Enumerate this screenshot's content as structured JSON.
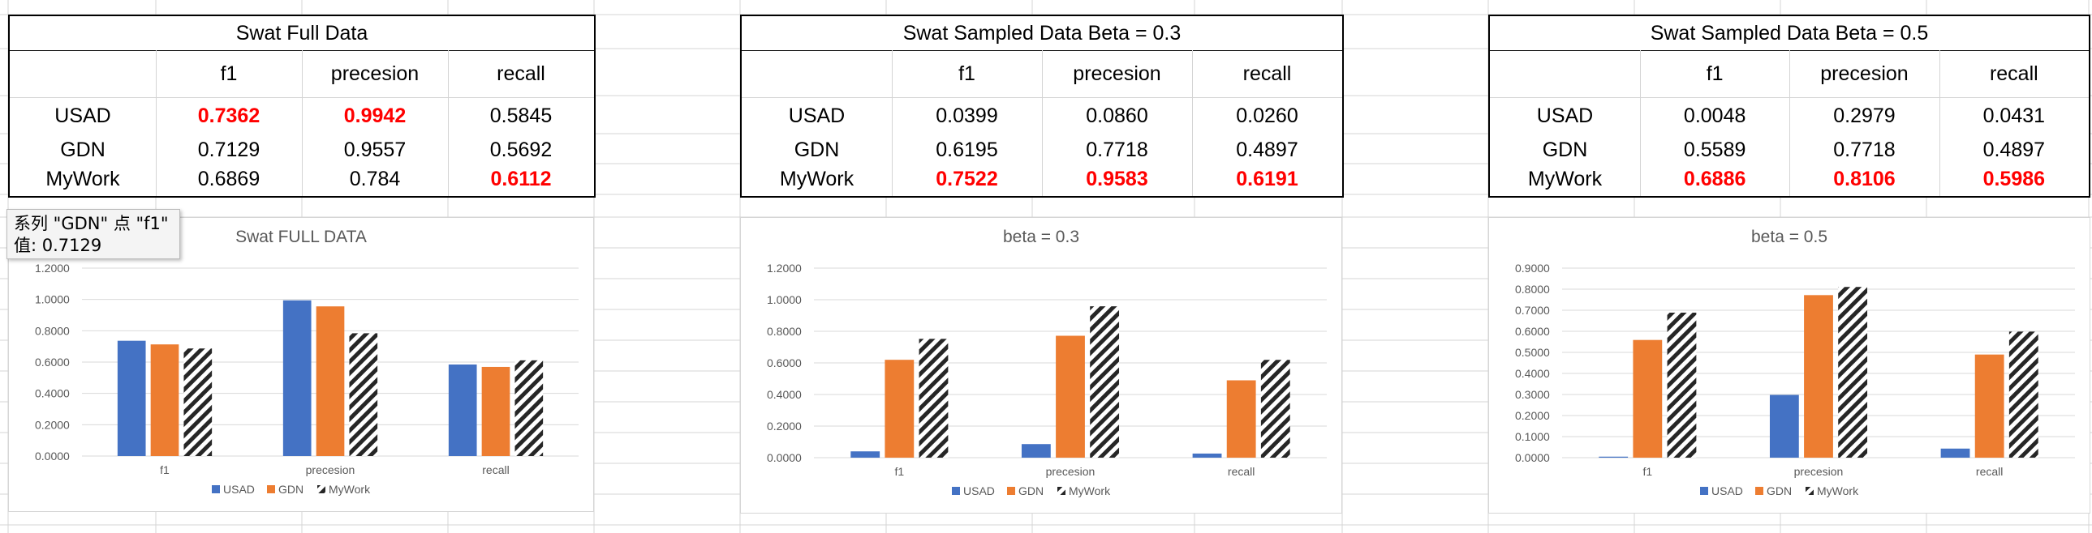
{
  "tables": [
    {
      "title": "Swat Full Data",
      "columns": [
        "f1",
        "precesion",
        "recall"
      ],
      "rows": [
        {
          "name": "USAD",
          "values": [
            "0.7362",
            "0.9942",
            "0.5845"
          ],
          "red": [
            true,
            true,
            false
          ]
        },
        {
          "name": "GDN",
          "values": [
            "0.7129",
            "0.9557",
            "0.5692"
          ],
          "red": [
            false,
            false,
            false
          ]
        },
        {
          "name": "MyWork",
          "values": [
            "0.6869",
            "0.784",
            "0.6112"
          ],
          "red": [
            false,
            false,
            true
          ]
        }
      ]
    },
    {
      "title": "Swat Sampled Data Beta = 0.3",
      "columns": [
        "f1",
        "precesion",
        "recall"
      ],
      "rows": [
        {
          "name": "USAD",
          "values": [
            "0.0399",
            "0.0860",
            "0.0260"
          ],
          "red": [
            false,
            false,
            false
          ]
        },
        {
          "name": "GDN",
          "values": [
            "0.6195",
            "0.7718",
            "0.4897"
          ],
          "red": [
            false,
            false,
            false
          ]
        },
        {
          "name": "MyWork",
          "values": [
            "0.7522",
            "0.9583",
            "0.6191"
          ],
          "red": [
            true,
            true,
            true
          ]
        }
      ]
    },
    {
      "title": "Swat Sampled Data Beta = 0.5",
      "columns": [
        "f1",
        "precesion",
        "recall"
      ],
      "rows": [
        {
          "name": "USAD",
          "values": [
            "0.0048",
            "0.2979",
            "0.0431"
          ],
          "red": [
            false,
            false,
            false
          ]
        },
        {
          "name": "GDN",
          "values": [
            "0.5589",
            "0.7718",
            "0.4897"
          ],
          "red": [
            false,
            false,
            false
          ]
        },
        {
          "name": "MyWork",
          "values": [
            "0.6886",
            "0.8106",
            "0.5986"
          ],
          "red": [
            true,
            true,
            true
          ]
        }
      ]
    }
  ],
  "tooltip": {
    "line1": "系列 \"GDN\" 点 \"f1\"",
    "line2": "值: 0.7129"
  },
  "colors": {
    "usad": "#4472c4",
    "gdn": "#ed7d31",
    "mywork_stripe": "#262626",
    "red_text": "#ff0000"
  },
  "chart_data": [
    {
      "type": "bar",
      "title": "Swat FULL DATA",
      "categories": [
        "f1",
        "precesion",
        "recall"
      ],
      "series": [
        {
          "name": "USAD",
          "values": [
            0.7362,
            0.9942,
            0.5845
          ]
        },
        {
          "name": "GDN",
          "values": [
            0.7129,
            0.9557,
            0.5692
          ]
        },
        {
          "name": "MyWork",
          "values": [
            0.6869,
            0.784,
            0.6112
          ]
        }
      ],
      "ylim": [
        0,
        1.2
      ],
      "yticks": [
        "0.0000",
        "0.2000",
        "0.4000",
        "0.6000",
        "0.8000",
        "1.0000",
        "1.2000"
      ],
      "legend": "bottom",
      "grid": true
    },
    {
      "type": "bar",
      "title": "beta = 0.3",
      "categories": [
        "f1",
        "precesion",
        "recall"
      ],
      "series": [
        {
          "name": "USAD",
          "values": [
            0.0399,
            0.086,
            0.026
          ]
        },
        {
          "name": "GDN",
          "values": [
            0.6195,
            0.7718,
            0.4897
          ]
        },
        {
          "name": "MyWork",
          "values": [
            0.7522,
            0.9583,
            0.6191
          ]
        }
      ],
      "ylim": [
        0,
        1.2
      ],
      "yticks": [
        "0.0000",
        "0.2000",
        "0.4000",
        "0.6000",
        "0.8000",
        "1.0000",
        "1.2000"
      ],
      "legend": "bottom",
      "grid": true
    },
    {
      "type": "bar",
      "title": "beta = 0.5",
      "categories": [
        "f1",
        "precesion",
        "recall"
      ],
      "series": [
        {
          "name": "USAD",
          "values": [
            0.0048,
            0.2979,
            0.0431
          ]
        },
        {
          "name": "GDN",
          "values": [
            0.5589,
            0.7718,
            0.4897
          ]
        },
        {
          "name": "MyWork",
          "values": [
            0.6886,
            0.8106,
            0.5986
          ]
        }
      ],
      "ylim": [
        0,
        0.9
      ],
      "yticks": [
        "0.0000",
        "0.1000",
        "0.2000",
        "0.3000",
        "0.4000",
        "0.5000",
        "0.6000",
        "0.7000",
        "0.8000",
        "0.9000"
      ],
      "legend": "bottom",
      "grid": true
    }
  ]
}
